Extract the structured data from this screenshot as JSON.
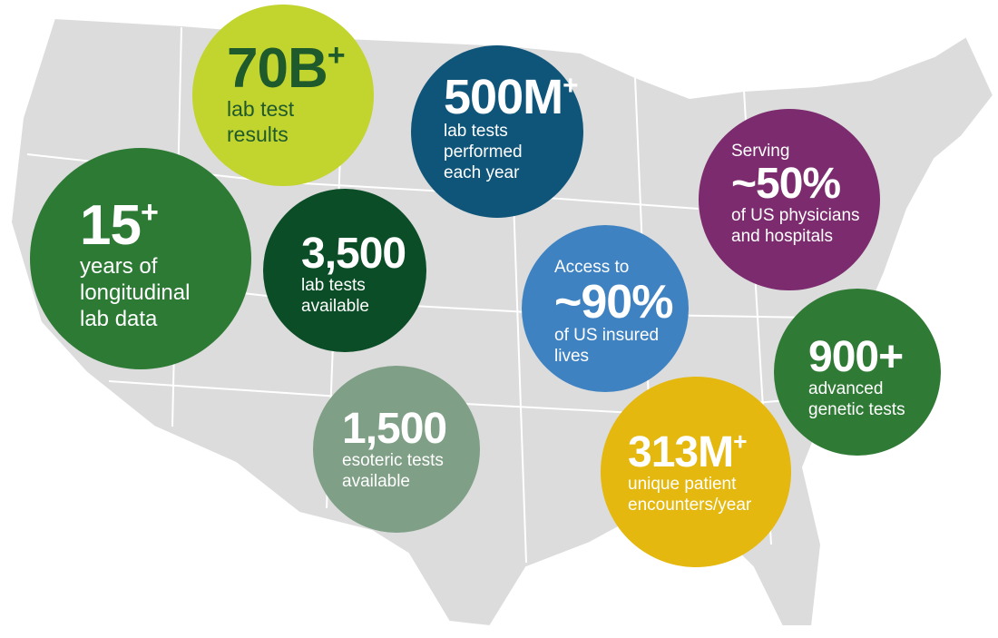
{
  "bubbles": [
    {
      "stat": "70B",
      "sup": "+",
      "lines": [
        "lab test",
        "results"
      ]
    },
    {
      "stat": "500M",
      "sup": "+",
      "lines": [
        "lab tests",
        "performed",
        "each year"
      ]
    },
    {
      "stat": "15",
      "sup": "+",
      "lines": [
        "years of",
        "longitudinal",
        "lab data"
      ]
    },
    {
      "stat": "3,500",
      "lines": [
        "lab tests",
        "available"
      ]
    },
    {
      "pre": "Access to",
      "stat": "~90%",
      "lines": [
        "of US insured",
        "lives"
      ]
    },
    {
      "pre": "Serving",
      "stat": "~50%",
      "lines": [
        "of US physicians",
        "and hospitals"
      ]
    },
    {
      "stat": "900+",
      "lines": [
        "advanced",
        "genetic tests"
      ]
    },
    {
      "stat": "1,500",
      "lines": [
        "esoteric tests",
        "available"
      ]
    },
    {
      "stat": "313M",
      "sup": "+",
      "lines": [
        "unique patient",
        "encounters/year"
      ]
    }
  ]
}
